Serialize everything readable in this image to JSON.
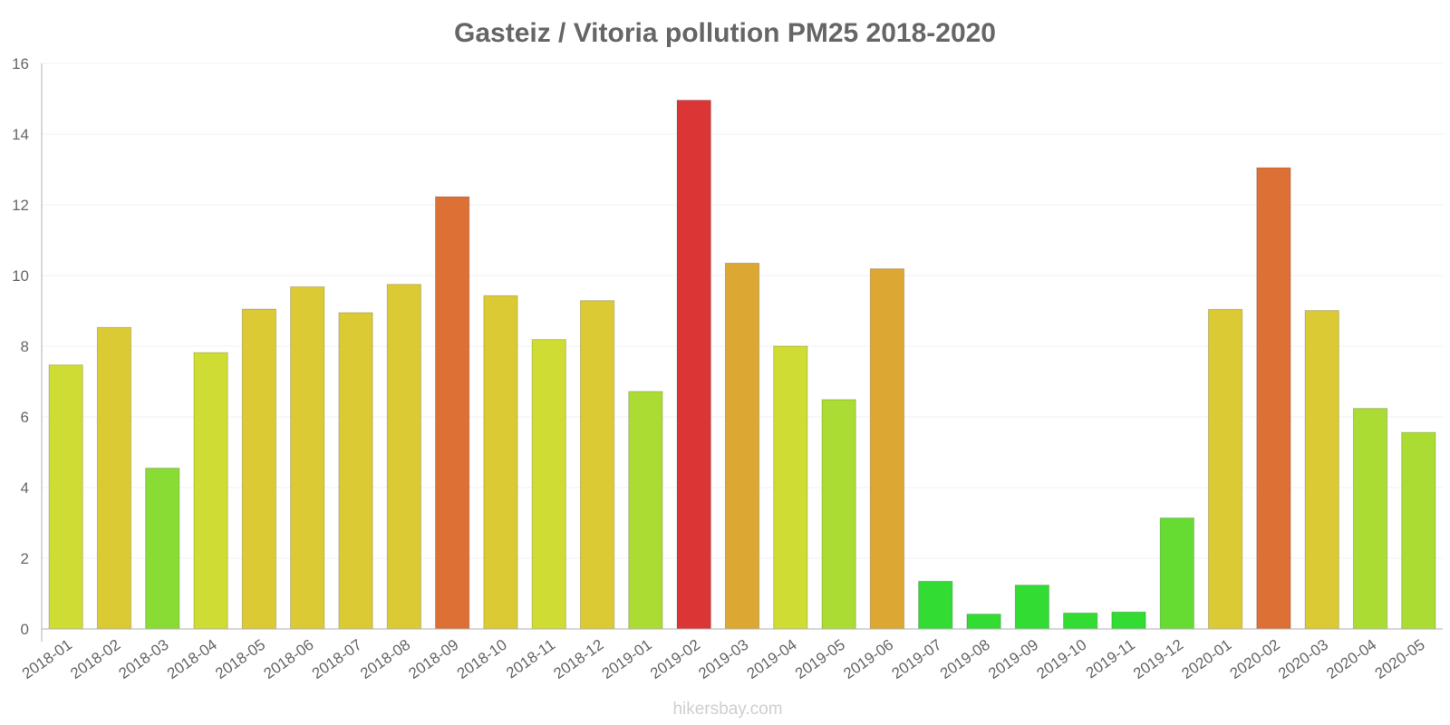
{
  "chart_data": {
    "type": "bar",
    "title": "Gasteiz / Vitoria pollution PM25 2018-2020",
    "xlabel": "",
    "ylabel": "",
    "ylim": [
      0,
      16
    ],
    "yticks": [
      "0",
      "2",
      "4",
      "6",
      "8",
      "10",
      "12",
      "14",
      "16"
    ],
    "grid": true,
    "categories": [
      "2018-01",
      "2018-02",
      "2018-03",
      "2018-04",
      "2018-05",
      "2018-06",
      "2018-07",
      "2018-08",
      "2018-09",
      "2018-10",
      "2018-11",
      "2018-12",
      "2019-01",
      "2019-02",
      "2019-03",
      "2019-04",
      "2019-05",
      "2019-06",
      "2019-07",
      "2019-08",
      "2019-09",
      "2019-10",
      "2019-11",
      "2019-12",
      "2020-01",
      "2020-02",
      "2020-03",
      "2020-04",
      "2020-05"
    ],
    "values": [
      7.47,
      8.53,
      4.55,
      7.82,
      9.05,
      9.68,
      8.95,
      9.75,
      12.23,
      9.43,
      8.19,
      9.29,
      6.72,
      14.96,
      10.35,
      8.0,
      6.49,
      10.19,
      1.35,
      0.42,
      1.24,
      0.45,
      0.48,
      3.14,
      9.04,
      13.05,
      9.01,
      6.24,
      5.56
    ],
    "colors": [
      "#cfdc33",
      "#dbca33",
      "#88dc33",
      "#cfdc33",
      "#dbca33",
      "#dbca33",
      "#dbca33",
      "#dbca33",
      "#dd7034",
      "#dbca33",
      "#cfdc33",
      "#dbca33",
      "#aadc33",
      "#dc3535",
      "#dca733",
      "#cfdc33",
      "#aadc33",
      "#dca733",
      "#33dc33",
      "#33dc33",
      "#33dc33",
      "#33dc33",
      "#33dc33",
      "#66dc33",
      "#dbca33",
      "#dd7034",
      "#dbca33",
      "#aadc33",
      "#aadc33"
    ]
  },
  "watermark": "hikersbay.com"
}
